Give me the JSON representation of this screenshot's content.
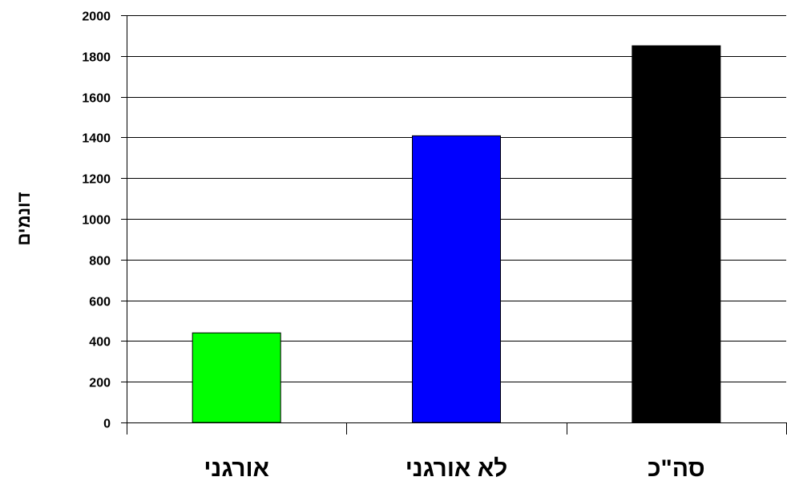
{
  "chart_data": {
    "type": "bar",
    "title": "",
    "xlabel": "",
    "ylabel": "דונמים",
    "ylim": [
      0,
      2000
    ],
    "yticks": [
      0,
      200,
      400,
      600,
      800,
      1000,
      1200,
      1400,
      1600,
      1800,
      2000
    ],
    "grid": true,
    "categories": [
      "אורגני",
      "לא אורגני",
      "סה\"כ"
    ],
    "values": [
      440,
      1408,
      1850
    ],
    "colors": [
      "#00ff00",
      "#0000ff",
      "#000000"
    ]
  }
}
